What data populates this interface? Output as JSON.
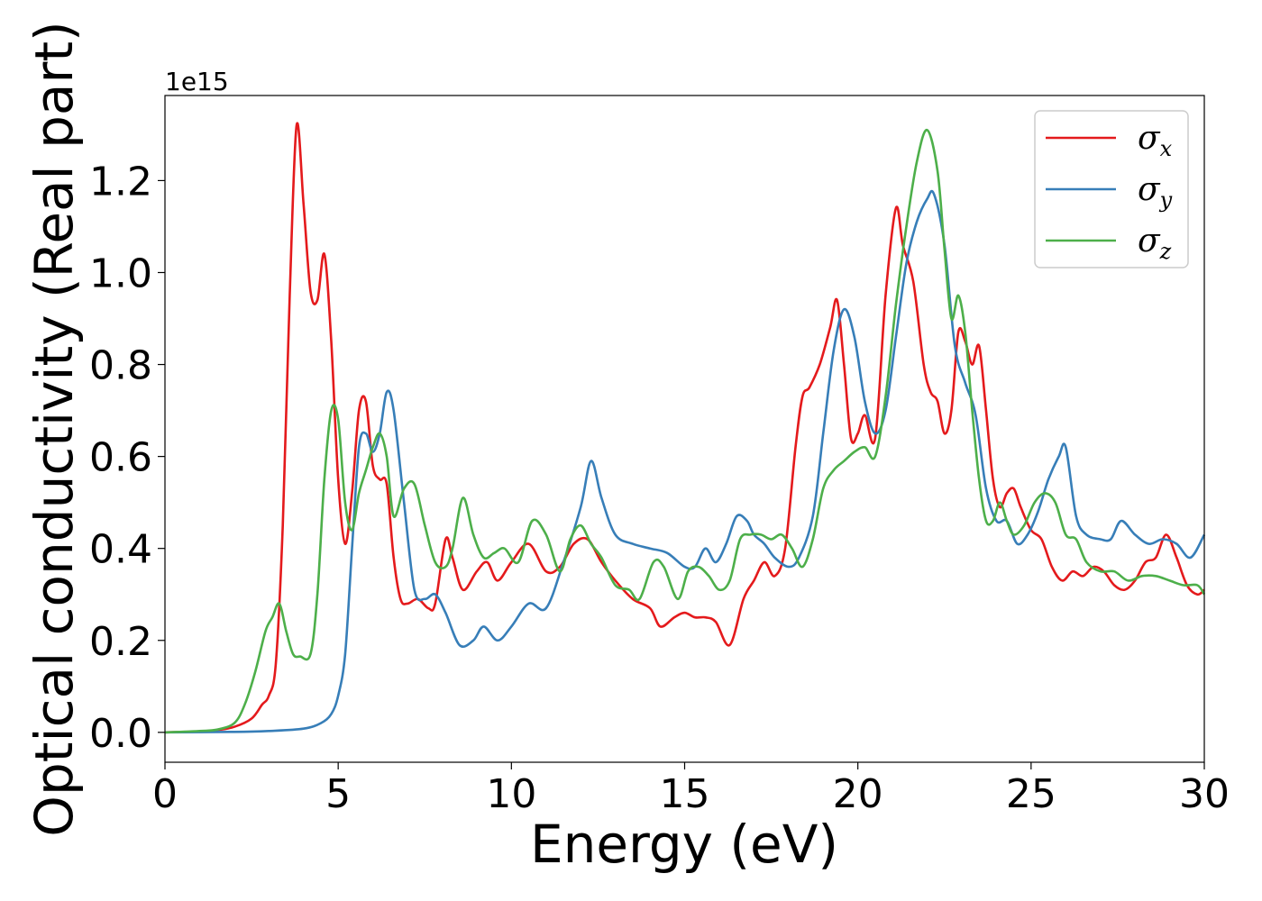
{
  "chart_data": {
    "type": "line",
    "xlabel": "Energy (eV)",
    "ylabel": "Optical conductivity (Real part)",
    "y_offset_label": "1e15",
    "xlim": [
      0,
      30
    ],
    "ylim": [
      -0.065,
      1.385
    ],
    "x_ticks": [
      0,
      5,
      10,
      15,
      20,
      25,
      30
    ],
    "x_tick_labels": [
      "0",
      "5",
      "10",
      "15",
      "20",
      "25",
      "30"
    ],
    "y_ticks": [
      0.0,
      0.2,
      0.4,
      0.6,
      0.8,
      1.0,
      1.2
    ],
    "y_tick_labels": [
      "0.0",
      "0.2",
      "0.4",
      "0.6",
      "0.8",
      "1.0",
      "1.2"
    ],
    "grid": false,
    "legend_position": "top-right",
    "series": [
      {
        "name": "σx",
        "symbol": "σ",
        "subscript": "x",
        "color": "#e41a1c",
        "x": [
          0,
          1,
          1.5,
          2,
          2.5,
          2.8,
          3.0,
          3.2,
          3.4,
          3.6,
          3.8,
          4.0,
          4.2,
          4.4,
          4.6,
          4.8,
          5.0,
          5.2,
          5.4,
          5.6,
          5.8,
          6.0,
          6.2,
          6.4,
          6.6,
          6.8,
          7.0,
          7.3,
          7.6,
          7.8,
          8.1,
          8.3,
          8.6,
          9.0,
          9.3,
          9.6,
          10.0,
          10.5,
          11.0,
          11.4,
          11.8,
          12.2,
          12.6,
          13.0,
          13.5,
          14.0,
          14.3,
          14.7,
          15.0,
          15.3,
          15.6,
          15.9,
          16.3,
          16.7,
          17.0,
          17.3,
          17.6,
          17.9,
          18.2,
          18.4,
          18.6,
          18.9,
          19.2,
          19.4,
          19.6,
          19.8,
          20.0,
          20.2,
          20.5,
          20.8,
          21.1,
          21.3,
          21.6,
          21.9,
          22.1,
          22.3,
          22.5,
          22.7,
          22.9,
          23.1,
          23.3,
          23.5,
          23.7,
          23.9,
          24.1,
          24.3,
          24.5,
          24.7,
          25.0,
          25.3,
          25.6,
          25.9,
          26.2,
          26.5,
          26.8,
          27.1,
          27.4,
          27.7,
          28.0,
          28.3,
          28.6,
          28.9,
          29.2,
          29.5,
          29.8,
          30.0
        ],
        "y": [
          0.0,
          0.002,
          0.005,
          0.012,
          0.03,
          0.06,
          0.08,
          0.15,
          0.45,
          0.95,
          1.32,
          1.15,
          0.96,
          0.94,
          1.04,
          0.85,
          0.55,
          0.41,
          0.52,
          0.7,
          0.72,
          0.58,
          0.55,
          0.54,
          0.38,
          0.29,
          0.28,
          0.29,
          0.27,
          0.28,
          0.42,
          0.38,
          0.31,
          0.35,
          0.37,
          0.33,
          0.37,
          0.41,
          0.35,
          0.36,
          0.41,
          0.42,
          0.37,
          0.33,
          0.29,
          0.27,
          0.23,
          0.25,
          0.26,
          0.25,
          0.25,
          0.24,
          0.19,
          0.29,
          0.33,
          0.37,
          0.34,
          0.4,
          0.62,
          0.73,
          0.75,
          0.8,
          0.88,
          0.94,
          0.8,
          0.64,
          0.65,
          0.69,
          0.64,
          0.95,
          1.14,
          1.06,
          0.98,
          0.8,
          0.74,
          0.72,
          0.65,
          0.7,
          0.87,
          0.85,
          0.8,
          0.84,
          0.7,
          0.55,
          0.49,
          0.52,
          0.53,
          0.49,
          0.44,
          0.42,
          0.36,
          0.33,
          0.35,
          0.34,
          0.36,
          0.35,
          0.32,
          0.31,
          0.33,
          0.37,
          0.38,
          0.43,
          0.38,
          0.32,
          0.3,
          0.31
        ]
      },
      {
        "name": "σy",
        "symbol": "σ",
        "subscript": "y",
        "color": "#377eb8",
        "x": [
          0,
          2,
          3,
          4,
          4.5,
          4.8,
          5.0,
          5.2,
          5.4,
          5.6,
          5.8,
          6.0,
          6.2,
          6.4,
          6.6,
          6.9,
          7.2,
          7.5,
          7.8,
          8.1,
          8.5,
          8.9,
          9.2,
          9.6,
          10.0,
          10.5,
          11.0,
          11.5,
          12.0,
          12.3,
          12.6,
          13.0,
          13.5,
          14.0,
          14.5,
          15.0,
          15.3,
          15.6,
          15.9,
          16.2,
          16.5,
          16.8,
          17.0,
          17.3,
          17.6,
          18.0,
          18.3,
          18.7,
          19.0,
          19.3,
          19.6,
          19.9,
          20.2,
          20.5,
          20.8,
          21.1,
          21.4,
          21.7,
          22.0,
          22.2,
          22.5,
          22.8,
          23.1,
          23.4,
          23.7,
          24.0,
          24.3,
          24.6,
          24.9,
          25.2,
          25.5,
          25.8,
          26.0,
          26.3,
          26.6,
          27.0,
          27.3,
          27.6,
          28.0,
          28.4,
          28.8,
          29.2,
          29.6,
          30.0
        ],
        "y": [
          0.0,
          0.001,
          0.003,
          0.008,
          0.02,
          0.04,
          0.08,
          0.17,
          0.4,
          0.62,
          0.65,
          0.61,
          0.65,
          0.74,
          0.7,
          0.5,
          0.31,
          0.29,
          0.3,
          0.26,
          0.19,
          0.2,
          0.23,
          0.2,
          0.23,
          0.28,
          0.27,
          0.37,
          0.49,
          0.59,
          0.51,
          0.43,
          0.41,
          0.4,
          0.39,
          0.36,
          0.36,
          0.4,
          0.37,
          0.41,
          0.47,
          0.46,
          0.43,
          0.41,
          0.38,
          0.36,
          0.38,
          0.47,
          0.65,
          0.83,
          0.92,
          0.86,
          0.72,
          0.65,
          0.7,
          0.86,
          1.02,
          1.11,
          1.16,
          1.17,
          1.06,
          0.84,
          0.76,
          0.69,
          0.53,
          0.46,
          0.46,
          0.41,
          0.43,
          0.48,
          0.55,
          0.6,
          0.62,
          0.47,
          0.43,
          0.42,
          0.42,
          0.46,
          0.43,
          0.41,
          0.42,
          0.41,
          0.38,
          0.43
        ]
      },
      {
        "name": "σz",
        "symbol": "σ",
        "subscript": "z",
        "color": "#4daf4a",
        "x": [
          0,
          1,
          1.5,
          2,
          2.3,
          2.6,
          2.9,
          3.1,
          3.3,
          3.5,
          3.7,
          3.9,
          4.2,
          4.4,
          4.6,
          4.8,
          5.0,
          5.2,
          5.4,
          5.6,
          5.8,
          6.0,
          6.2,
          6.4,
          6.6,
          6.9,
          7.2,
          7.5,
          7.8,
          8.1,
          8.3,
          8.6,
          8.9,
          9.2,
          9.5,
          9.8,
          10.2,
          10.6,
          11.0,
          11.4,
          11.7,
          12.0,
          12.3,
          12.6,
          13.0,
          13.4,
          13.7,
          14.1,
          14.4,
          14.8,
          15.1,
          15.4,
          15.7,
          16.0,
          16.3,
          16.6,
          16.9,
          17.2,
          17.5,
          17.8,
          18.1,
          18.4,
          18.7,
          19.0,
          19.3,
          19.6,
          19.9,
          20.2,
          20.5,
          20.8,
          21.1,
          21.4,
          21.7,
          22.0,
          22.3,
          22.5,
          22.7,
          22.9,
          23.1,
          23.3,
          23.5,
          23.7,
          23.9,
          24.1,
          24.3,
          24.5,
          24.8,
          25.1,
          25.4,
          25.7,
          26.0,
          26.3,
          26.6,
          27.0,
          27.4,
          27.8,
          28.2,
          28.6,
          29.0,
          29.4,
          29.8,
          30.0
        ],
        "y": [
          0.0,
          0.003,
          0.006,
          0.02,
          0.06,
          0.13,
          0.22,
          0.25,
          0.28,
          0.22,
          0.17,
          0.165,
          0.17,
          0.3,
          0.55,
          0.7,
          0.68,
          0.5,
          0.44,
          0.52,
          0.57,
          0.62,
          0.65,
          0.6,
          0.47,
          0.53,
          0.54,
          0.45,
          0.37,
          0.36,
          0.4,
          0.51,
          0.43,
          0.38,
          0.39,
          0.4,
          0.37,
          0.46,
          0.43,
          0.35,
          0.42,
          0.45,
          0.41,
          0.38,
          0.32,
          0.31,
          0.29,
          0.37,
          0.36,
          0.29,
          0.35,
          0.36,
          0.34,
          0.31,
          0.33,
          0.42,
          0.43,
          0.43,
          0.42,
          0.43,
          0.4,
          0.36,
          0.42,
          0.53,
          0.57,
          0.59,
          0.61,
          0.62,
          0.6,
          0.73,
          0.93,
          1.1,
          1.24,
          1.31,
          1.22,
          1.05,
          0.9,
          0.95,
          0.87,
          0.7,
          0.55,
          0.46,
          0.46,
          0.5,
          0.46,
          0.43,
          0.45,
          0.5,
          0.52,
          0.5,
          0.43,
          0.42,
          0.37,
          0.35,
          0.35,
          0.33,
          0.34,
          0.34,
          0.33,
          0.32,
          0.32,
          0.3
        ]
      }
    ]
  }
}
